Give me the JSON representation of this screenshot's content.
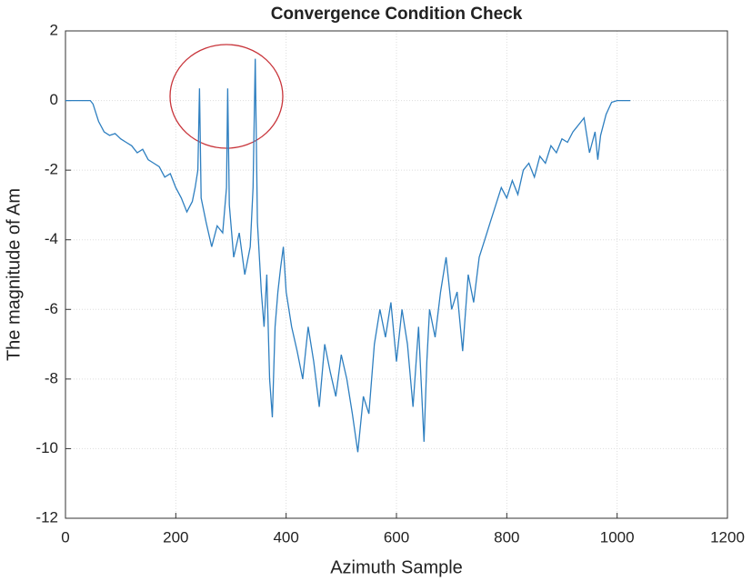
{
  "chart_data": {
    "type": "line",
    "title": "Convergence Condition Check",
    "xlabel": "Azimuth Sample",
    "ylabel": "The magnitude of Am",
    "color": "#2e7fc0",
    "x": [
      0,
      45,
      50,
      60,
      70,
      80,
      90,
      100,
      110,
      120,
      130,
      140,
      150,
      160,
      170,
      180,
      190,
      200,
      210,
      220,
      230,
      235,
      240,
      243,
      246,
      255,
      265,
      275,
      285,
      292,
      294,
      297,
      305,
      315,
      325,
      335,
      340,
      344,
      348,
      355,
      360,
      365,
      370,
      375,
      380,
      385,
      390,
      395,
      400,
      410,
      420,
      430,
      440,
      450,
      460,
      470,
      480,
      490,
      500,
      510,
      520,
      530,
      540,
      550,
      560,
      570,
      580,
      590,
      600,
      610,
      620,
      630,
      640,
      650,
      655,
      660,
      670,
      680,
      690,
      700,
      710,
      720,
      730,
      740,
      750,
      760,
      770,
      780,
      790,
      800,
      810,
      820,
      830,
      840,
      850,
      860,
      870,
      880,
      890,
      900,
      910,
      920,
      930,
      940,
      950,
      960,
      965,
      970,
      980,
      990,
      1000,
      1024
    ],
    "values": [
      0,
      0,
      -0.1,
      -0.6,
      -0.9,
      -1.0,
      -0.95,
      -1.1,
      -1.2,
      -1.3,
      -1.5,
      -1.4,
      -1.7,
      -1.8,
      -1.9,
      -2.2,
      -2.1,
      -2.5,
      -2.8,
      -3.2,
      -2.9,
      -2.5,
      -2.0,
      0.35,
      -2.8,
      -3.5,
      -4.2,
      -3.6,
      -3.8,
      -2.5,
      0.35,
      -3.0,
      -4.5,
      -3.8,
      -5.0,
      -4.2,
      -2.5,
      1.2,
      -3.5,
      -5.5,
      -6.5,
      -5.0,
      -8.0,
      -9.1,
      -6.5,
      -5.5,
      -4.8,
      -4.2,
      -5.5,
      -6.5,
      -7.2,
      -8.0,
      -6.5,
      -7.5,
      -8.8,
      -7.0,
      -7.8,
      -8.5,
      -7.3,
      -8.0,
      -9.0,
      -10.1,
      -8.5,
      -9.0,
      -7.0,
      -6.0,
      -6.8,
      -5.8,
      -7.5,
      -6.0,
      -7.0,
      -8.8,
      -6.5,
      -9.8,
      -7.5,
      -6.0,
      -6.8,
      -5.5,
      -4.5,
      -6.0,
      -5.5,
      -7.2,
      -5.0,
      -5.8,
      -4.5,
      -4.0,
      -3.5,
      -3.0,
      -2.5,
      -2.8,
      -2.3,
      -2.7,
      -2.0,
      -1.8,
      -2.2,
      -1.6,
      -1.8,
      -1.3,
      -1.5,
      -1.1,
      -1.2,
      -0.9,
      -0.7,
      -0.5,
      -1.5,
      -0.9,
      -1.7,
      -1.0,
      -0.4,
      -0.05,
      0,
      0
    ],
    "xlim": [
      0,
      1200
    ],
    "xticks": [
      0,
      200,
      400,
      600,
      800,
      1000,
      1200
    ],
    "ylim": [
      -12,
      2
    ],
    "yticks": [
      -12,
      -10,
      -8,
      -6,
      -4,
      -2,
      0,
      2
    ],
    "grid": true
  }
}
